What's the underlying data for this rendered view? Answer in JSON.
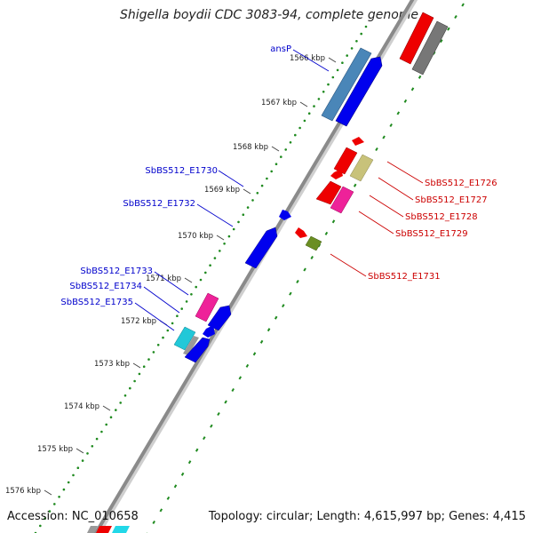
{
  "title": "Shigella boydii CDC 3083-94, complete genome",
  "accession_label": "Accession: NC_010658",
  "summary_label": "Topology: circular; Length: 4,615,997 bp; Genes: 4,415",
  "ticks": [
    {
      "label": "1566 kbp"
    },
    {
      "label": "1567 kbp"
    },
    {
      "label": "1568 kbp"
    },
    {
      "label": "1569 kbp"
    },
    {
      "label": "1570 kbp"
    },
    {
      "label": "1571 kbp"
    },
    {
      "label": "1572 kbp"
    },
    {
      "label": "1573 kbp"
    },
    {
      "label": "1574 kbp"
    },
    {
      "label": "1575 kbp"
    },
    {
      "label": "1576 kbp"
    }
  ],
  "left_labels": [
    {
      "text": "ansP",
      "color": "#0000cc"
    },
    {
      "text": "SbBS512_E1730",
      "color": "#0000cc"
    },
    {
      "text": "SbBS512_E1732",
      "color": "#0000cc"
    },
    {
      "text": "SbBS512_E1733",
      "color": "#0000cc"
    },
    {
      "text": "SbBS512_E1734",
      "color": "#0000cc"
    },
    {
      "text": "SbBS512_E1735",
      "color": "#0000cc"
    }
  ],
  "right_labels": [
    {
      "text": "SbBS512_E1726",
      "color": "#cc0000"
    },
    {
      "text": "SbBS512_E1727",
      "color": "#cc0000"
    },
    {
      "text": "SbBS512_E1728",
      "color": "#cc0000"
    },
    {
      "text": "SbBS512_E1729",
      "color": "#cc0000"
    },
    {
      "text": "SbBS512_E1731",
      "color": "#cc0000"
    }
  ],
  "colors": {
    "backbone": "#8a8a8a",
    "tick_dots": "#1f8a1f",
    "forward_gene": "#0000ee",
    "reverse_gene": "#ee0000",
    "steelblue_gene": "#4a86b8",
    "gray_gene": "#777777",
    "magenta_gene": "#ee2299",
    "khaki_gene": "#c8c27a",
    "olive_gene": "#6b8e23",
    "cyan_gene": "#22c8d8"
  }
}
